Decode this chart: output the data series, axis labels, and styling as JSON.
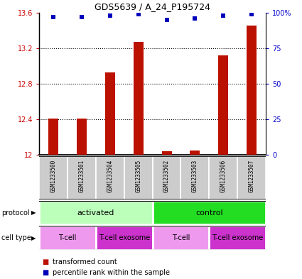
{
  "title": "GDS5639 / A_24_P195724",
  "samples": [
    "GSM1233500",
    "GSM1233501",
    "GSM1233504",
    "GSM1233505",
    "GSM1233502",
    "GSM1233503",
    "GSM1233506",
    "GSM1233507"
  ],
  "bar_values": [
    12.41,
    12.41,
    12.93,
    13.27,
    12.04,
    12.05,
    13.12,
    13.45
  ],
  "percentile_values": [
    97,
    97,
    98,
    99,
    95,
    96,
    98,
    99
  ],
  "ylim": [
    12.0,
    13.6
  ],
  "y_ticks": [
    12,
    12.4,
    12.8,
    13.2,
    13.6
  ],
  "y_right_ticks": [
    0,
    25,
    50,
    75,
    100
  ],
  "bar_color": "#bb1100",
  "dot_color": "#0000bb",
  "bar_width": 0.35,
  "protocol_groups": [
    {
      "label": "activated",
      "start": 0,
      "end": 4,
      "color": "#bbffbb"
    },
    {
      "label": "control",
      "start": 4,
      "end": 8,
      "color": "#22dd22"
    }
  ],
  "cell_type_groups": [
    {
      "label": "T-cell",
      "start": 0,
      "end": 2,
      "color": "#ee99ee"
    },
    {
      "label": "T-cell exosome",
      "start": 2,
      "end": 4,
      "color": "#cc33cc"
    },
    {
      "label": "T-cell",
      "start": 4,
      "end": 6,
      "color": "#ee99ee"
    },
    {
      "label": "T-cell exosome",
      "start": 6,
      "end": 8,
      "color": "#cc33cc"
    }
  ],
  "label_protocol": "protocol",
  "label_cell_type": "cell type",
  "legend_red": "transformed count",
  "legend_blue": "percentile rank within the sample",
  "ylabel_left_color": "#cc0000",
  "ylabel_right_color": "#0000cc",
  "bg_color": "#ffffff",
  "sample_box_color": "#cccccc"
}
